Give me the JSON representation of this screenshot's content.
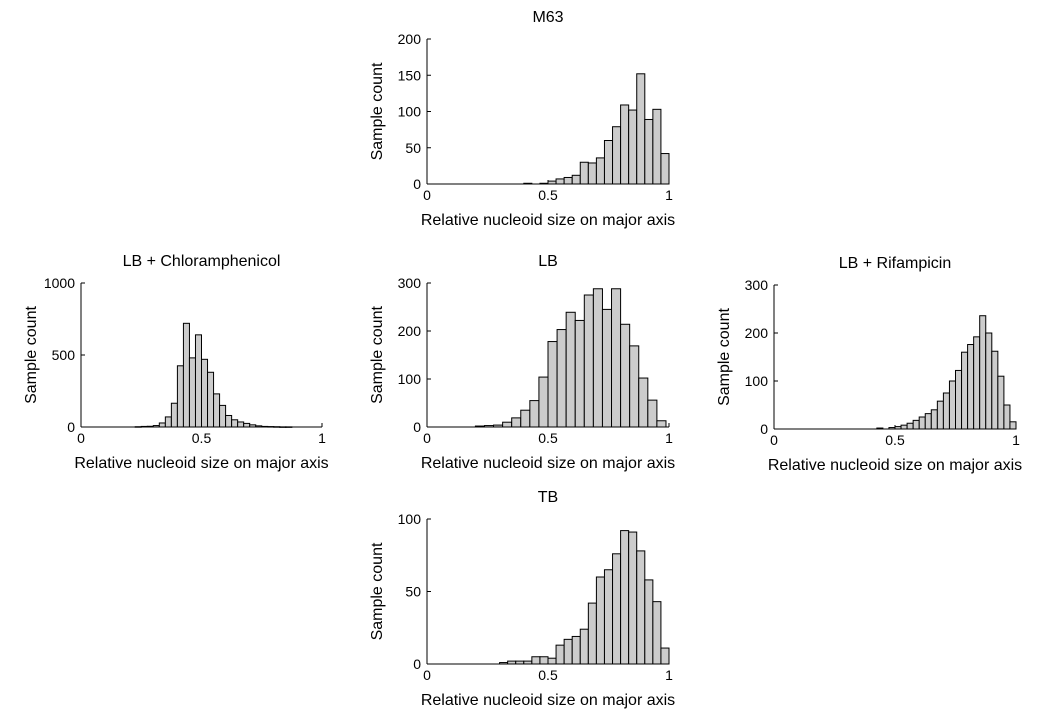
{
  "chart_data": [
    {
      "type": "bar",
      "title": "M63",
      "xlabel": "Relative nucleoid size on major axis",
      "ylabel": "Sample count",
      "xlim": [
        0,
        1
      ],
      "ylim": [
        0,
        200
      ],
      "xticks": [
        0,
        0.5,
        1
      ],
      "xtick_labels": [
        "0",
        "0.5",
        "1"
      ],
      "yticks": [
        0,
        50,
        100,
        150,
        200
      ],
      "ytick_labels": [
        "0",
        "50",
        "100",
        "150",
        "200"
      ],
      "bin_width": 0.0333,
      "bin_starts": [
        0.4,
        0.4333,
        0.4667,
        0.5,
        0.5333,
        0.5667,
        0.6,
        0.6333,
        0.6667,
        0.7,
        0.7333,
        0.7667,
        0.8,
        0.8333,
        0.8667,
        0.9,
        0.9333,
        0.9667
      ],
      "values": [
        1,
        0,
        1,
        4,
        7,
        9,
        12,
        30,
        29,
        36,
        60,
        79,
        109,
        102,
        152,
        89,
        103,
        42
      ],
      "grid": false
    },
    {
      "type": "bar",
      "title": "LB + Chloramphenicol",
      "xlabel": "Relative nucleoid size on major axis",
      "ylabel": "Sample count",
      "xlim": [
        0,
        1
      ],
      "ylim": [
        0,
        1000
      ],
      "xticks": [
        0,
        0.5,
        1
      ],
      "xtick_labels": [
        "0",
        "0.5",
        "1"
      ],
      "yticks": [
        0,
        500,
        1000
      ],
      "ytick_labels": [
        "0",
        "500",
        "1000"
      ],
      "bin_width": 0.025,
      "bin_starts": [
        0.225,
        0.25,
        0.275,
        0.3,
        0.325,
        0.35,
        0.375,
        0.4,
        0.425,
        0.45,
        0.475,
        0.5,
        0.525,
        0.55,
        0.575,
        0.6,
        0.625,
        0.65,
        0.675,
        0.7,
        0.725,
        0.75,
        0.775,
        0.8,
        0.825,
        0.85
      ],
      "values": [
        2,
        4,
        5,
        10,
        28,
        70,
        165,
        425,
        720,
        480,
        640,
        470,
        380,
        230,
        150,
        80,
        50,
        35,
        25,
        15,
        8,
        4,
        3,
        2,
        1,
        1
      ],
      "grid": false
    },
    {
      "type": "bar",
      "title": "LB",
      "xlabel": "Relative nucleoid size on major axis",
      "ylabel": "Sample count",
      "xlim": [
        0,
        1
      ],
      "ylim": [
        0,
        300
      ],
      "xticks": [
        0,
        0.5,
        1
      ],
      "xtick_labels": [
        "0",
        "0.5",
        "1"
      ],
      "yticks": [
        0,
        100,
        200,
        300
      ],
      "ytick_labels": [
        "0",
        "100",
        "200",
        "300"
      ],
      "bin_width": 0.0375,
      "bin_starts": [
        0.2,
        0.2375,
        0.275,
        0.3125,
        0.35,
        0.3875,
        0.425,
        0.4625,
        0.5,
        0.5375,
        0.575,
        0.6125,
        0.65,
        0.6875,
        0.725,
        0.7625,
        0.8,
        0.8375,
        0.875,
        0.9125,
        0.95
      ],
      "values": [
        2,
        3,
        4,
        10,
        19,
        35,
        55,
        104,
        178,
        203,
        239,
        222,
        275,
        288,
        245,
        288,
        214,
        169,
        102,
        56,
        13
      ],
      "grid": false
    },
    {
      "type": "bar",
      "title": "LB + Rifampicin",
      "xlabel": "Relative nucleoid size on major axis",
      "ylabel": "Sample count",
      "xlim": [
        0,
        1
      ],
      "ylim": [
        0,
        300
      ],
      "xticks": [
        0,
        0.5,
        1
      ],
      "xtick_labels": [
        "0",
        "0.5",
        "1"
      ],
      "yticks": [
        0,
        100,
        200,
        300
      ],
      "ytick_labels": [
        "0",
        "100",
        "200",
        "300"
      ],
      "bin_width": 0.025,
      "bin_starts": [
        0.425,
        0.45,
        0.475,
        0.5,
        0.525,
        0.55,
        0.575,
        0.6,
        0.625,
        0.65,
        0.675,
        0.7,
        0.725,
        0.75,
        0.775,
        0.8,
        0.825,
        0.85,
        0.875,
        0.9,
        0.925,
        0.95,
        0.975
      ],
      "values": [
        2,
        0,
        3,
        5,
        8,
        12,
        18,
        25,
        32,
        40,
        58,
        75,
        100,
        122,
        160,
        176,
        192,
        236,
        200,
        162,
        110,
        50,
        15
      ],
      "grid": false
    },
    {
      "type": "bar",
      "title": "TB",
      "xlabel": "Relative nucleoid size on major axis",
      "ylabel": "Sample count",
      "xlim": [
        0,
        1
      ],
      "ylim": [
        0,
        100
      ],
      "xticks": [
        0,
        0.5,
        1
      ],
      "xtick_labels": [
        "0",
        "0.5",
        "1"
      ],
      "yticks": [
        0,
        50,
        100
      ],
      "ytick_labels": [
        "0",
        "50",
        "100"
      ],
      "bin_width": 0.0333,
      "bin_starts": [
        0.3,
        0.3333,
        0.3667,
        0.4,
        0.4333,
        0.4667,
        0.5,
        0.5333,
        0.5667,
        0.6,
        0.6333,
        0.6667,
        0.7,
        0.7333,
        0.7667,
        0.8,
        0.8333,
        0.8667,
        0.9,
        0.9333,
        0.9667
      ],
      "values": [
        1,
        2,
        2,
        2,
        5,
        5,
        4,
        13,
        17,
        19,
        24,
        42,
        60,
        65,
        76,
        92,
        91,
        78,
        58,
        43,
        11
      ],
      "grid": false
    }
  ]
}
